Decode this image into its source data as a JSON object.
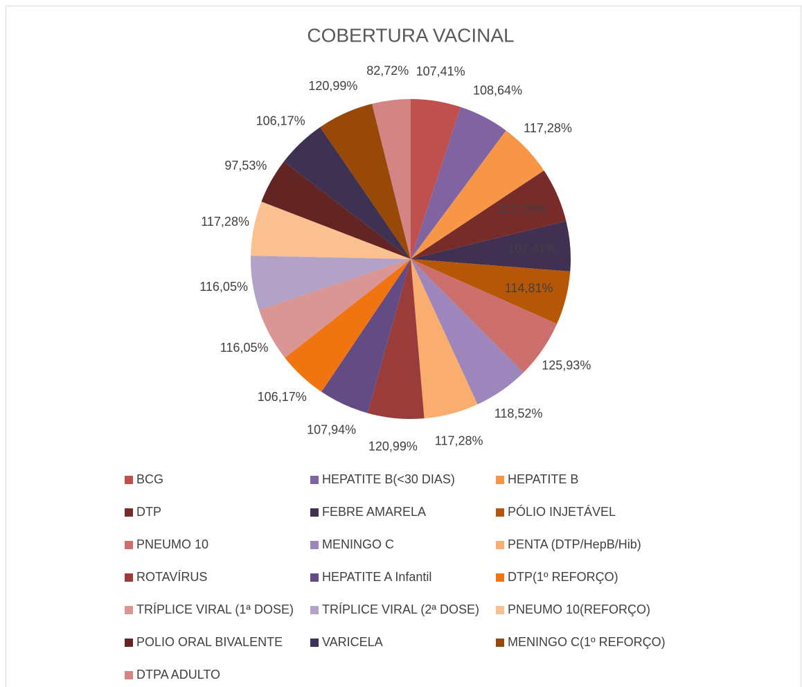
{
  "chart_data": {
    "type": "pie",
    "title": "COBERTURA VACINAL",
    "categories": [
      "BCG",
      "HEPATITE B(<30 DIAS)",
      "HEPATITE B",
      "DTP",
      "FEBRE AMARELA",
      "PÓLIO INJETÁVEL",
      "PNEUMO 10",
      "MENINGO C",
      "PENTA (DTP/HepB/Hib)",
      "ROTAVÍRUS",
      "HEPATITE A Infantil",
      "DTP(1º REFORÇO)",
      "TRÍPLICE VIRAL (1ª DOSE)",
      "TRÍPLICE VIRAL (2ª DOSE)",
      "PNEUMO 10(REFORÇO)",
      "POLIO ORAL BIVALENTE",
      "VARICELA",
      "MENINGO C(1º REFORÇO)",
      "DTPA ADULTO"
    ],
    "values": [
      107.41,
      108.64,
      117.28,
      117.28,
      107.41,
      114.81,
      125.93,
      118.52,
      117.28,
      120.99,
      107.94,
      106.17,
      116.05,
      116.05,
      117.28,
      97.53,
      106.17,
      120.99,
      82.72
    ],
    "value_labels": [
      "107,41%",
      "108,64%",
      "117,28%",
      "117,28%",
      "107,41%",
      "114,81%",
      "125,93%",
      "118,52%",
      "117,28%",
      "120,99%",
      "107,94%",
      "106,17%",
      "116,05%",
      "116,05%",
      "117,28%",
      "97,53%",
      "106,17%",
      "120,99%",
      "82,72%"
    ],
    "colors": [
      "#c0504d",
      "#8064a2",
      "#f79646",
      "#772c2a",
      "#403152",
      "#b65708",
      "#cd6f6c",
      "#9c86bb",
      "#f9ad6e",
      "#9a3c3a",
      "#634c84",
      "#f07511",
      "#d99694",
      "#b3a2c7",
      "#fac090",
      "#632523",
      "#3f3151",
      "#984807",
      "#d38584"
    ],
    "legend": "bottom"
  }
}
